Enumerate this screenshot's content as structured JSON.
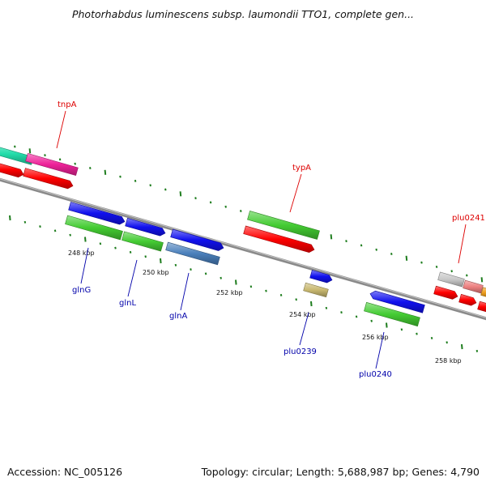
{
  "title": "Photorhabdus luminescens subsp. laumondii TTO1, complete gen...",
  "footer": {
    "accession": "Accession: NC_005126",
    "summary": "Topology: circular; Length: 5,688,987 bp; Genes: 4,790"
  },
  "colors": {
    "backbone": "#8a8a8a",
    "tick": "#1e7d1e",
    "label_red": "#dd0000",
    "label_blue": "#0000aa",
    "red": "#ff0000",
    "green": "#44cc33",
    "blue": "#1111ee",
    "magenta": "#ee2299",
    "teal": "#22ddaa",
    "steelblue": "#4a7fbb",
    "khaki": "#c8b870",
    "grey": "#c8c8c8",
    "pink": "#ee8080",
    "orange": "#f0a020"
  },
  "scale_labels": [
    "248 kbp",
    "250 kbp",
    "252 kbp",
    "254 kbp",
    "256 kbp",
    "258 kbp"
  ],
  "gene_labels": [
    {
      "text": "tnpA",
      "color": "label_red"
    },
    {
      "text": "typA",
      "color": "label_red"
    },
    {
      "text": "plu0241",
      "color": "label_red"
    },
    {
      "text": "glnG",
      "color": "label_blue"
    },
    {
      "text": "glnL",
      "color": "label_blue"
    },
    {
      "text": "glnA",
      "color": "label_blue"
    },
    {
      "text": "plu0239",
      "color": "label_blue"
    },
    {
      "text": "plu0240",
      "color": "label_blue"
    }
  ]
}
